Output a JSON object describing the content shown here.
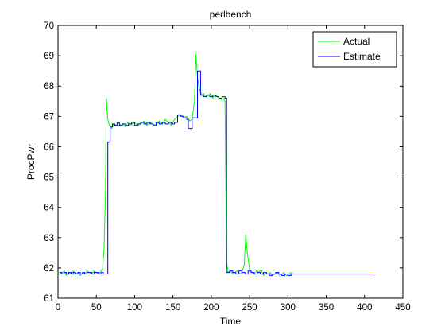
{
  "chart_data": {
    "type": "line",
    "title": "perlbench",
    "xlabel": "Time",
    "ylabel": "ProcPwr",
    "xlim": [
      0,
      450
    ],
    "ylim": [
      61,
      70
    ],
    "xticks": [
      0,
      50,
      100,
      150,
      200,
      250,
      300,
      350,
      400,
      450
    ],
    "yticks": [
      61,
      62,
      63,
      64,
      65,
      66,
      67,
      68,
      69,
      70
    ],
    "grid": false,
    "legend_position": "top-right",
    "series": [
      {
        "name": "Actual",
        "color": "#00ff00",
        "x": [
          2,
          5,
          8,
          11,
          14,
          17,
          20,
          23,
          26,
          29,
          32,
          35,
          38,
          41,
          44,
          47,
          50,
          53,
          56,
          58,
          60,
          62,
          63,
          65,
          67,
          70,
          73,
          76,
          79,
          82,
          85,
          88,
          91,
          94,
          97,
          100,
          104,
          108,
          112,
          116,
          120,
          124,
          128,
          132,
          136,
          140,
          144,
          148,
          152,
          156,
          160,
          164,
          168,
          172,
          175,
          178,
          180,
          182,
          184,
          186,
          188,
          190,
          193,
          196,
          199,
          202,
          205,
          208,
          211,
          214,
          216,
          218,
          219,
          220,
          222,
          225,
          228,
          231,
          234,
          237,
          240,
          243,
          245,
          247,
          250,
          253,
          256,
          259,
          262,
          265,
          268,
          271,
          274,
          277,
          280,
          283,
          286,
          289,
          292,
          295,
          298,
          301,
          304,
          307,
          310
        ],
        "values": [
          61.85,
          61.8,
          61.9,
          61.75,
          61.85,
          61.8,
          61.9,
          61.8,
          61.85,
          61.75,
          61.85,
          61.8,
          61.9,
          61.85,
          61.8,
          61.9,
          61.85,
          61.8,
          61.9,
          61.95,
          62.6,
          64.5,
          67.6,
          66.9,
          66.7,
          66.6,
          66.75,
          66.7,
          66.8,
          66.7,
          66.75,
          66.65,
          66.8,
          66.7,
          66.75,
          66.8,
          66.7,
          66.75,
          66.85,
          66.7,
          66.8,
          66.75,
          66.7,
          66.85,
          66.75,
          66.9,
          66.8,
          66.7,
          66.9,
          67.0,
          67.05,
          66.95,
          67.0,
          66.85,
          66.9,
          67.5,
          69.05,
          68.3,
          67.95,
          67.8,
          67.7,
          67.75,
          67.65,
          67.7,
          67.75,
          67.6,
          67.7,
          67.65,
          67.6,
          67.55,
          67.6,
          67.5,
          64.6,
          62.2,
          61.85,
          61.9,
          61.8,
          61.85,
          61.9,
          61.8,
          61.85,
          62.1,
          63.1,
          62.5,
          61.95,
          61.85,
          61.8,
          61.9,
          61.85,
          61.95,
          61.75,
          61.85,
          61.8,
          61.85,
          61.75,
          61.8,
          61.85,
          61.75,
          61.8,
          61.85,
          61.75,
          61.8,
          61.85,
          61.8,
          61.8
        ]
      },
      {
        "name": "Estimate",
        "color": "#0000ff",
        "x": [
          2,
          5,
          8,
          11,
          14,
          17,
          20,
          23,
          26,
          29,
          32,
          35,
          38,
          41,
          44,
          47,
          50,
          53,
          56,
          59,
          62,
          65,
          68,
          71,
          74,
          77,
          80,
          84,
          88,
          92,
          96,
          100,
          104,
          108,
          112,
          116,
          120,
          124,
          128,
          132,
          136,
          140,
          144,
          148,
          152,
          156,
          160,
          164,
          168,
          170,
          175,
          178,
          182,
          186,
          190,
          194,
          198,
          202,
          206,
          210,
          214,
          218,
          220,
          224,
          228,
          232,
          236,
          240,
          244,
          248,
          252,
          256,
          260,
          264,
          268,
          272,
          276,
          280,
          284,
          288,
          292,
          296,
          300,
          304,
          308,
          412
        ],
        "values": [
          61.85,
          61.8,
          61.85,
          61.8,
          61.85,
          61.8,
          61.85,
          61.8,
          61.85,
          61.8,
          61.85,
          61.8,
          61.85,
          61.85,
          61.8,
          61.85,
          61.85,
          61.8,
          61.85,
          61.8,
          61.8,
          66.15,
          66.65,
          66.75,
          66.7,
          66.8,
          66.7,
          66.75,
          66.7,
          66.75,
          66.8,
          66.7,
          66.75,
          66.8,
          66.75,
          66.8,
          66.75,
          66.7,
          66.8,
          66.75,
          66.8,
          66.75,
          66.8,
          66.75,
          66.8,
          67.05,
          67.0,
          66.95,
          66.9,
          66.6,
          66.95,
          66.95,
          68.5,
          67.7,
          67.65,
          67.7,
          67.65,
          67.7,
          67.65,
          67.6,
          67.65,
          67.6,
          61.85,
          61.9,
          61.85,
          61.8,
          61.9,
          61.85,
          61.8,
          61.9,
          61.85,
          61.8,
          61.85,
          61.8,
          61.85,
          61.8,
          61.75,
          61.8,
          61.85,
          61.8,
          61.75,
          61.8,
          61.75,
          61.8,
          61.8,
          61.8
        ]
      }
    ]
  }
}
